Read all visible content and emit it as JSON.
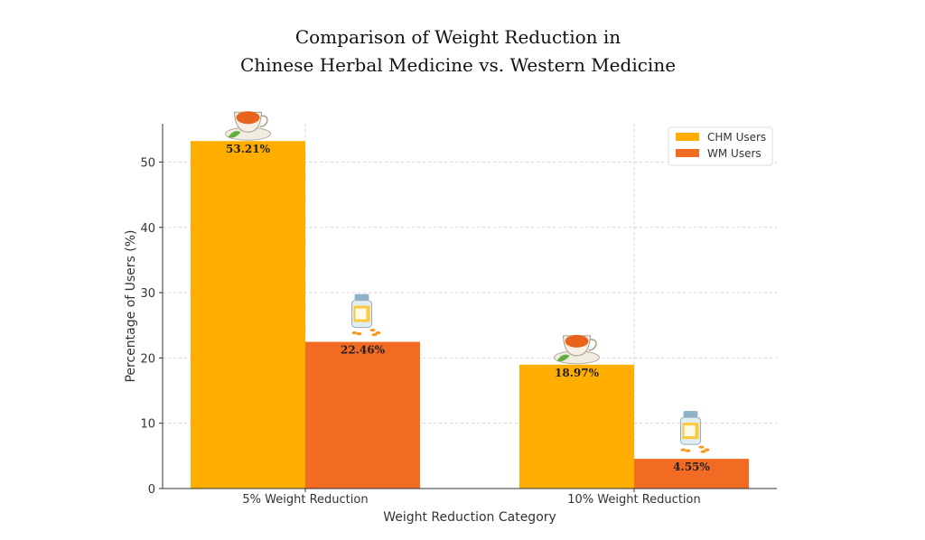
{
  "chart_data": {
    "type": "bar",
    "title_lines": [
      "Comparison of Weight Reduction in",
      "Chinese Herbal Medicine vs. Western Medicine"
    ],
    "xlabel": "Weight Reduction Category",
    "ylabel": "Percentage of Users (%)",
    "categories": [
      "5% Weight Reduction",
      "10% Weight Reduction"
    ],
    "series": [
      {
        "name": "CHM Users",
        "values": [
          53.21,
          18.97
        ],
        "labels": [
          "53.21%",
          "18.97%"
        ],
        "color": "#FFAE00",
        "icon": "teacup-icon"
      },
      {
        "name": "WM Users",
        "values": [
          22.46,
          4.55
        ],
        "labels": [
          "22.46%",
          "4.55%"
        ],
        "color": "#F26B22",
        "icon": "pill-bottle-icon"
      }
    ],
    "ylim": [
      0,
      55.87
    ],
    "yticks": [
      0,
      10,
      20,
      30,
      40,
      50
    ],
    "grid": true,
    "legend_position": "top-right"
  }
}
